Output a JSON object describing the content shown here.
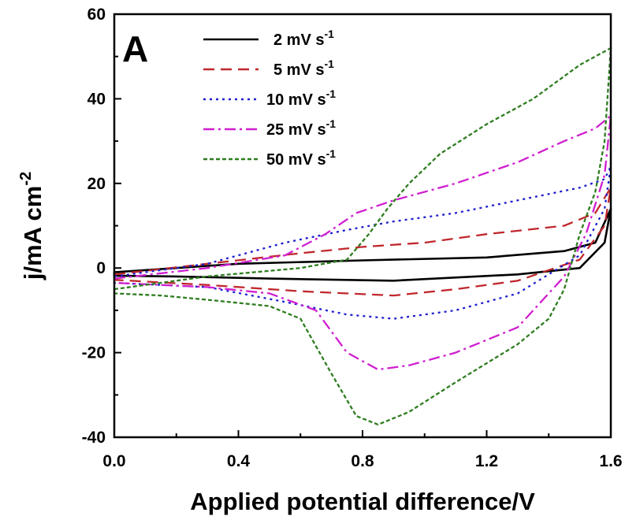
{
  "chart_data": {
    "type": "line",
    "panel_label": "A",
    "xlabel": "Applied potential difference/V",
    "ylabel": "j/mA cm",
    "ylabel_sup": "-2",
    "xlim": [
      0,
      1.6
    ],
    "ylim": [
      -40,
      60
    ],
    "xticks": [
      0.0,
      0.4,
      0.8,
      1.2,
      1.6
    ],
    "xtick_labels": [
      "0.0",
      "0.4",
      "0.8",
      "1.2",
      "1.6"
    ],
    "yticks": [
      -40,
      -20,
      0,
      20,
      40,
      60
    ],
    "ytick_labels": [
      "-40",
      "-20",
      "0",
      "20",
      "40",
      "60"
    ],
    "legend_position": "top-left",
    "series": [
      {
        "name": "2 mV s",
        "name_sup": "-1",
        "color": "#000000",
        "dash": "solid",
        "points": [
          [
            0,
            -1
          ],
          [
            0.4,
            1
          ],
          [
            0.8,
            1.8
          ],
          [
            1.2,
            2.5
          ],
          [
            1.45,
            4
          ],
          [
            1.55,
            6
          ],
          [
            1.6,
            14
          ],
          [
            1.58,
            6
          ],
          [
            1.5,
            0
          ],
          [
            1.3,
            -1.5
          ],
          [
            0.9,
            -3
          ],
          [
            0.5,
            -2.5
          ],
          [
            0.2,
            -2
          ],
          [
            0,
            -1.8
          ]
        ]
      },
      {
        "name": "5 mV s",
        "name_sup": "-1",
        "color": "#c0272d",
        "dash": "dashed",
        "points": [
          [
            0,
            -1.5
          ],
          [
            0.3,
            1
          ],
          [
            0.6,
            3.5
          ],
          [
            0.8,
            5
          ],
          [
            1.0,
            6
          ],
          [
            1.2,
            8
          ],
          [
            1.45,
            10
          ],
          [
            1.55,
            13
          ],
          [
            1.6,
            19
          ],
          [
            1.58,
            10
          ],
          [
            1.5,
            2
          ],
          [
            1.3,
            -3
          ],
          [
            1.1,
            -5
          ],
          [
            0.9,
            -6.5
          ],
          [
            0.6,
            -5.5
          ],
          [
            0.3,
            -4
          ],
          [
            0,
            -2.8
          ]
        ]
      },
      {
        "name": "10 mV s",
        "name_sup": "-1",
        "color": "#1f1fcf",
        "dash": "dotted",
        "points": [
          [
            0,
            -2
          ],
          [
            0.3,
            1
          ],
          [
            0.55,
            6
          ],
          [
            0.75,
            9
          ],
          [
            0.9,
            11
          ],
          [
            1.1,
            13
          ],
          [
            1.3,
            16
          ],
          [
            1.5,
            19
          ],
          [
            1.58,
            21
          ],
          [
            1.6,
            24
          ],
          [
            1.58,
            14
          ],
          [
            1.5,
            3
          ],
          [
            1.3,
            -6
          ],
          [
            1.1,
            -10
          ],
          [
            0.9,
            -12
          ],
          [
            0.75,
            -11
          ],
          [
            0.55,
            -8
          ],
          [
            0.3,
            -4.5
          ],
          [
            0,
            -3.5
          ]
        ]
      },
      {
        "name": "25 mV s",
        "name_sup": "-1",
        "color": "#d01fd0",
        "dash": "dashdot",
        "points": [
          [
            0,
            -2.5
          ],
          [
            0.3,
            0
          ],
          [
            0.55,
            3
          ],
          [
            0.68,
            8
          ],
          [
            0.78,
            13
          ],
          [
            0.9,
            16
          ],
          [
            1.1,
            20
          ],
          [
            1.3,
            25
          ],
          [
            1.45,
            30
          ],
          [
            1.55,
            33
          ],
          [
            1.6,
            36
          ],
          [
            1.58,
            22
          ],
          [
            1.52,
            8
          ],
          [
            1.45,
            -2
          ],
          [
            1.3,
            -14
          ],
          [
            1.1,
            -20
          ],
          [
            0.95,
            -23
          ],
          [
            0.85,
            -24
          ],
          [
            0.75,
            -20
          ],
          [
            0.65,
            -10
          ],
          [
            0.5,
            -6
          ],
          [
            0.3,
            -4.5
          ],
          [
            0,
            -3.5
          ]
        ]
      },
      {
        "name": "50 mV s",
        "name_sup": "-1",
        "color": "#2e7d1f",
        "dash": "shortdash",
        "points": [
          [
            0,
            -5
          ],
          [
            0.3,
            -2
          ],
          [
            0.6,
            0
          ],
          [
            0.75,
            2
          ],
          [
            0.82,
            8
          ],
          [
            0.88,
            14
          ],
          [
            0.95,
            20
          ],
          [
            1.05,
            27
          ],
          [
            1.2,
            34
          ],
          [
            1.35,
            40
          ],
          [
            1.5,
            48
          ],
          [
            1.6,
            52
          ],
          [
            1.58,
            30
          ],
          [
            1.55,
            18
          ],
          [
            1.5,
            8
          ],
          [
            1.45,
            -5
          ],
          [
            1.4,
            -12
          ],
          [
            1.3,
            -18
          ],
          [
            1.1,
            -27
          ],
          [
            0.95,
            -34
          ],
          [
            0.85,
            -37
          ],
          [
            0.78,
            -35
          ],
          [
            0.7,
            -25
          ],
          [
            0.6,
            -12
          ],
          [
            0.5,
            -9
          ],
          [
            0.3,
            -7.5
          ],
          [
            0.15,
            -6.5
          ],
          [
            0,
            -6
          ]
        ]
      }
    ]
  }
}
